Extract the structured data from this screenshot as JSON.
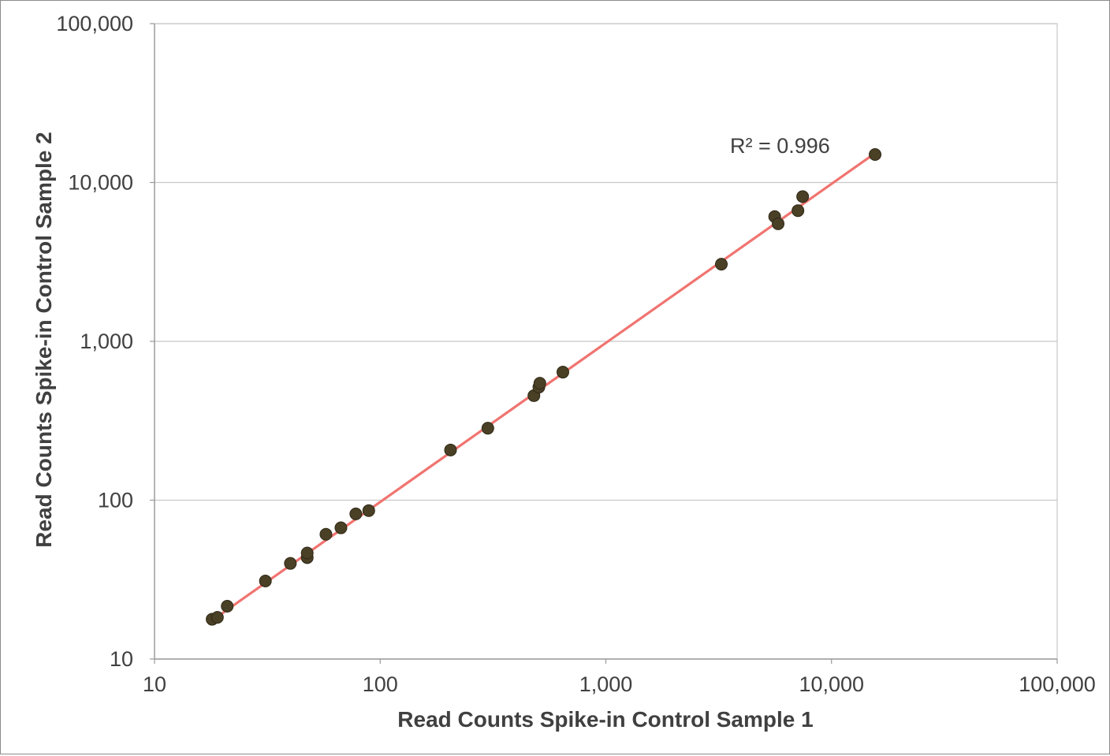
{
  "chart_data": {
    "type": "scatter",
    "title": "",
    "xlabel": "Read Counts Spike-in Control Sample 1",
    "ylabel": "Read Counts Spike-in Control Sample 2",
    "xscale": "log",
    "yscale": "log",
    "xlim": [
      10,
      100000
    ],
    "ylim": [
      10,
      100000
    ],
    "xticks": [
      10,
      100,
      1000,
      10000,
      100000
    ],
    "yticks": [
      10,
      100,
      1000,
      10000,
      100000
    ],
    "xtick_labels": [
      "10",
      "100",
      "1,000",
      "10,000",
      "100,000"
    ],
    "ytick_labels": [
      "10",
      "100",
      "1,000",
      "10,000",
      "100,000"
    ],
    "grid": "horizontal major gridlines",
    "legend": "none",
    "colors": {
      "marker": "#4a4026",
      "trendline": "#f07470",
      "gridline": "#c8c8c8",
      "axis_text": "#404040"
    },
    "series": [
      {
        "points": [
          {
            "x": 18,
            "y": 17.8
          },
          {
            "x": 19,
            "y": 18.3
          },
          {
            "x": 21,
            "y": 21.5
          },
          {
            "x": 31,
            "y": 31
          },
          {
            "x": 40,
            "y": 40
          },
          {
            "x": 47.5,
            "y": 43.5
          },
          {
            "x": 47.5,
            "y": 46.5
          },
          {
            "x": 57.5,
            "y": 61
          },
          {
            "x": 67,
            "y": 67
          },
          {
            "x": 78,
            "y": 82
          },
          {
            "x": 89,
            "y": 86
          },
          {
            "x": 205,
            "y": 207
          },
          {
            "x": 300,
            "y": 284
          },
          {
            "x": 480,
            "y": 455
          },
          {
            "x": 505,
            "y": 515
          },
          {
            "x": 510,
            "y": 545
          },
          {
            "x": 645,
            "y": 640
          },
          {
            "x": 3250,
            "y": 3060
          },
          {
            "x": 5600,
            "y": 6100
          },
          {
            "x": 5800,
            "y": 5500
          },
          {
            "x": 7100,
            "y": 6650
          },
          {
            "x": 7450,
            "y": 8150
          },
          {
            "x": 15600,
            "y": 15000
          }
        ]
      }
    ],
    "trendline": {
      "type": "power",
      "from": {
        "x": 18,
        "y": 17.5
      },
      "to": {
        "x": 15600,
        "y": 15300
      },
      "annotation": "R² = 0.996"
    }
  }
}
